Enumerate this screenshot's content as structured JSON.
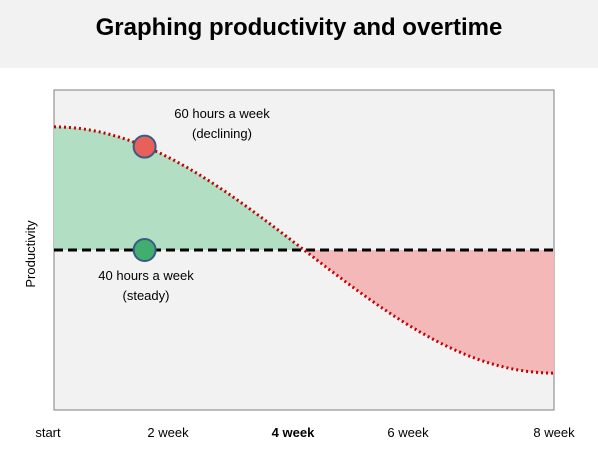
{
  "chart_data": {
    "type": "line",
    "title": "Graphing productivity and overtime",
    "ylabel": "Productivity",
    "xlabel": "",
    "x_ticks": [
      {
        "label": "start",
        "x": 0,
        "bold": false
      },
      {
        "label": "2 week",
        "x": 2,
        "bold": false
      },
      {
        "label": "4 week",
        "x": 4,
        "bold": true
      },
      {
        "label": "6 week",
        "x": 6,
        "bold": false
      },
      {
        "label": "8 week",
        "x": 8,
        "bold": false
      }
    ],
    "xlim": [
      0,
      8
    ],
    "ylim": [
      -1.3,
      1.3
    ],
    "grid": false,
    "series": [
      {
        "name": "60 hours a week",
        "sublabel": "(declining)",
        "style": "dotted",
        "color": "#c00000",
        "x": [
          0,
          0.5,
          1,
          1.5,
          2,
          2.5,
          3,
          3.5,
          4,
          4.5,
          5,
          5.5,
          6,
          6.5,
          7,
          7.5,
          8
        ],
        "y": [
          1.0,
          0.981,
          0.924,
          0.831,
          0.707,
          0.556,
          0.383,
          0.195,
          0.0,
          -0.195,
          -0.383,
          -0.556,
          -0.707,
          -0.831,
          -0.924,
          -0.981,
          -1.0
        ]
      },
      {
        "name": "40 hours a week",
        "sublabel": "(steady)",
        "style": "dashed",
        "color": "#000000",
        "x": [
          0,
          8
        ],
        "y": [
          0,
          0
        ]
      }
    ],
    "markers": [
      {
        "series": "60 hours a week",
        "x": 1.45,
        "y": 0.84,
        "color": "#e8605a"
      },
      {
        "series": "40 hours a week",
        "x": 1.45,
        "y": 0.0,
        "color": "#3fae6e"
      }
    ],
    "fills": {
      "gain": "#b2dfc4",
      "loss": "#f4b8b8"
    },
    "colors": {
      "plot_bg": "#f2f2f2",
      "title_bg": "#f2f2f2",
      "axis": "#7f7f7f"
    }
  }
}
